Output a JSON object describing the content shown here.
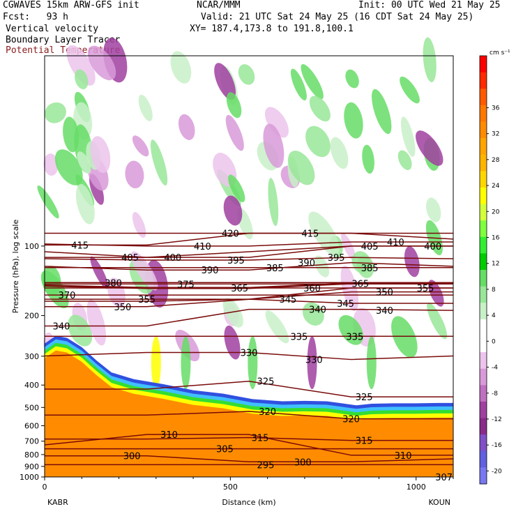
{
  "header": {
    "model": "CGWAVES 15km ARW-GFS init",
    "org": "NCAR/MMM",
    "init": "Init: 00 UTC Wed 21 May 25",
    "fcst": "Fcst:   93 h",
    "valid": "Valid: 21 UTC Sat 24 May 25 (16 CDT Sat 24 May 25)",
    "field1": "Vertical velocity",
    "field2": "Boundary Layer Tracer",
    "field3": "Potential Temperature",
    "xy": "XY= 187.4,173.8 to 191.8,100.1",
    "field3_color": "#8b1a1a"
  },
  "chart_data": {
    "type": "heatmap",
    "title": "",
    "xlabel": "Distance (km)",
    "ylabel": "Pressure (hPa), log scale",
    "xlim": [
      0,
      1100
    ],
    "ylim": [
      1000,
      15
    ],
    "yscale": "log",
    "x_ticks": [
      0,
      500,
      1000
    ],
    "x_tick_labels": [
      "0",
      "500",
      "1000"
    ],
    "y_ticks": [
      100,
      200,
      300,
      400,
      500,
      600,
      700,
      800,
      900,
      1000
    ],
    "y_tick_labels": [
      "100",
      "200",
      "300",
      "400",
      "500",
      "600",
      "700",
      "800",
      "900",
      "1000"
    ],
    "x_endpoints": {
      "left": "KABR",
      "right": "KOUN"
    },
    "colorbar": {
      "units": "cm s⁻¹",
      "ticks": [
        36,
        32,
        28,
        24,
        20,
        16,
        12,
        8,
        4,
        0,
        -4,
        -8,
        -12,
        -16,
        -20
      ],
      "tick_labels": [
        "36",
        "32",
        "28",
        "24",
        "20",
        "16",
        "12",
        "8",
        "4",
        "0",
        "-4",
        "-8",
        "-12",
        "-16",
        "-20"
      ],
      "colors": [
        "#ff0000",
        "#ff2a00",
        "#ff5a00",
        "#ff7800",
        "#ff8c00",
        "#ffa500",
        "#ffb400",
        "#ffd700",
        "#ffff00",
        "#d4ff3c",
        "#80ff40",
        "#33ee33",
        "#00cc00",
        "#66dd66",
        "#99e699",
        "#c8f0c8",
        "#ffffff",
        "#ffffff",
        "#ecc4ec",
        "#d89ad8",
        "#c070c0",
        "#a040a0",
        "#8a2a8a",
        "#8050c8",
        "#6060e0",
        "#7878f0"
      ]
    },
    "theta_labels": [
      {
        "value": 420,
        "x": 500,
        "p": 88
      },
      {
        "value": 415,
        "x": 95,
        "p": 99
      },
      {
        "value": 415,
        "x": 715,
        "p": 88
      },
      {
        "value": 410,
        "x": 425,
        "p": 100
      },
      {
        "value": 410,
        "x": 945,
        "p": 96
      },
      {
        "value": 405,
        "x": 230,
        "p": 112
      },
      {
        "value": 405,
        "x": 875,
        "p": 100
      },
      {
        "value": 400,
        "x": 345,
        "p": 112
      },
      {
        "value": 400,
        "x": 1045,
        "p": 100
      },
      {
        "value": 395,
        "x": 515,
        "p": 115
      },
      {
        "value": 395,
        "x": 785,
        "p": 112
      },
      {
        "value": 390,
        "x": 445,
        "p": 127
      },
      {
        "value": 390,
        "x": 705,
        "p": 118
      },
      {
        "value": 385,
        "x": 620,
        "p": 124
      },
      {
        "value": 385,
        "x": 875,
        "p": 124
      },
      {
        "value": 380,
        "x": 185,
        "p": 144
      },
      {
        "value": 375,
        "x": 380,
        "p": 146
      },
      {
        "value": 370,
        "x": 60,
        "p": 163
      },
      {
        "value": 365,
        "x": 525,
        "p": 152
      },
      {
        "value": 365,
        "x": 850,
        "p": 145
      },
      {
        "value": 360,
        "x": 720,
        "p": 152
      },
      {
        "value": 355,
        "x": 275,
        "p": 170
      },
      {
        "value": 355,
        "x": 1025,
        "p": 152
      },
      {
        "value": 350,
        "x": 210,
        "p": 183
      },
      {
        "value": 350,
        "x": 915,
        "p": 158
      },
      {
        "value": 345,
        "x": 655,
        "p": 170
      },
      {
        "value": 345,
        "x": 810,
        "p": 177
      },
      {
        "value": 340,
        "x": 45,
        "p": 222
      },
      {
        "value": 340,
        "x": 735,
        "p": 188
      },
      {
        "value": 340,
        "x": 915,
        "p": 190
      },
      {
        "value": 335,
        "x": 685,
        "p": 246
      },
      {
        "value": 335,
        "x": 835,
        "p": 246
      },
      {
        "value": 330,
        "x": 550,
        "p": 289
      },
      {
        "value": 330,
        "x": 725,
        "p": 310
      },
      {
        "value": 325,
        "x": 595,
        "p": 385
      },
      {
        "value": 325,
        "x": 860,
        "p": 450
      },
      {
        "value": 320,
        "x": 600,
        "p": 520
      },
      {
        "value": 320,
        "x": 825,
        "p": 560
      },
      {
        "value": 315,
        "x": 580,
        "p": 675
      },
      {
        "value": 315,
        "x": 860,
        "p": 695
      },
      {
        "value": 310,
        "x": 335,
        "p": 655
      },
      {
        "value": 310,
        "x": 965,
        "p": 805
      },
      {
        "value": 305,
        "x": 485,
        "p": 755
      },
      {
        "value": 300,
        "x": 235,
        "p": 810
      },
      {
        "value": 300,
        "x": 695,
        "p": 860
      },
      {
        "value": 295,
        "x": 595,
        "p": 885
      },
      {
        "value": 307,
        "x": 1075,
        "p": 1000
      }
    ],
    "terrain_p": [
      {
        "x": 0,
        "p": 270
      },
      {
        "x": 30,
        "p": 250
      },
      {
        "x": 60,
        "p": 255
      },
      {
        "x": 100,
        "p": 280
      },
      {
        "x": 140,
        "p": 320
      },
      {
        "x": 180,
        "p": 360
      },
      {
        "x": 240,
        "p": 385
      },
      {
        "x": 320,
        "p": 405
      },
      {
        "x": 400,
        "p": 430
      },
      {
        "x": 480,
        "p": 445
      },
      {
        "x": 560,
        "p": 470
      },
      {
        "x": 640,
        "p": 480
      },
      {
        "x": 700,
        "p": 478
      },
      {
        "x": 760,
        "p": 480
      },
      {
        "x": 800,
        "p": 490
      },
      {
        "x": 840,
        "p": 500
      },
      {
        "x": 880,
        "p": 492
      },
      {
        "x": 940,
        "p": 490
      },
      {
        "x": 1000,
        "p": 490
      },
      {
        "x": 1060,
        "p": 488
      },
      {
        "x": 1100,
        "p": 488
      }
    ]
  }
}
